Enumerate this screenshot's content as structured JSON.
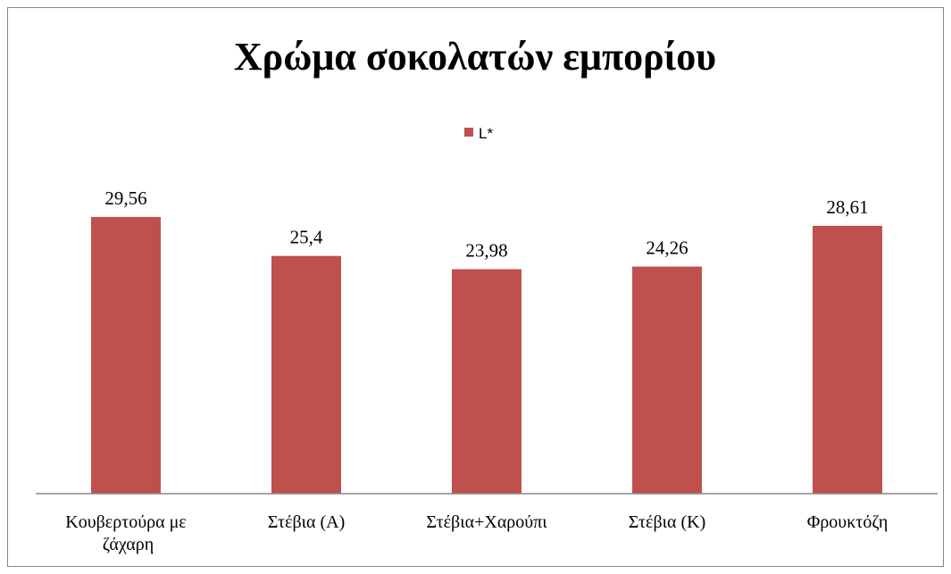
{
  "chart_data": {
    "type": "bar",
    "title": "Χρώμα σοκολατών εμπορίου",
    "categories": [
      "Κουβερτούρα με ζάχαρη",
      "Στέβια (Α)",
      "Στέβια+Χαρούπι",
      "Στέβια (Κ)",
      "Φρουκτόζη"
    ],
    "series": [
      {
        "name": "L*",
        "color": "#c0504d",
        "values": [
          29.56,
          25.4,
          23.98,
          24.26,
          28.61
        ],
        "value_labels": [
          "29,56",
          "25,4",
          "23,98",
          "24,26",
          "28,61"
        ]
      }
    ],
    "ylim": [
      0,
      35
    ],
    "legend": "top"
  }
}
